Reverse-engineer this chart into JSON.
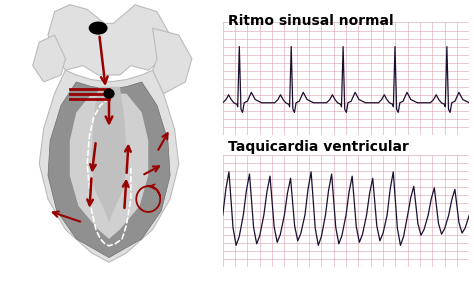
{
  "bg_color": "#ffffff",
  "label_normal": "Ritmo sinusal normal",
  "label_tachy": "Taquicardia ventricular",
  "ecg_bg_color": "#f5d0d8",
  "ecg_grid_color": "#d8a0b0",
  "ecg_line_color": "#1a1030",
  "label_fontsize": 10,
  "label_fontweight": "bold",
  "red_color": "#990000"
}
